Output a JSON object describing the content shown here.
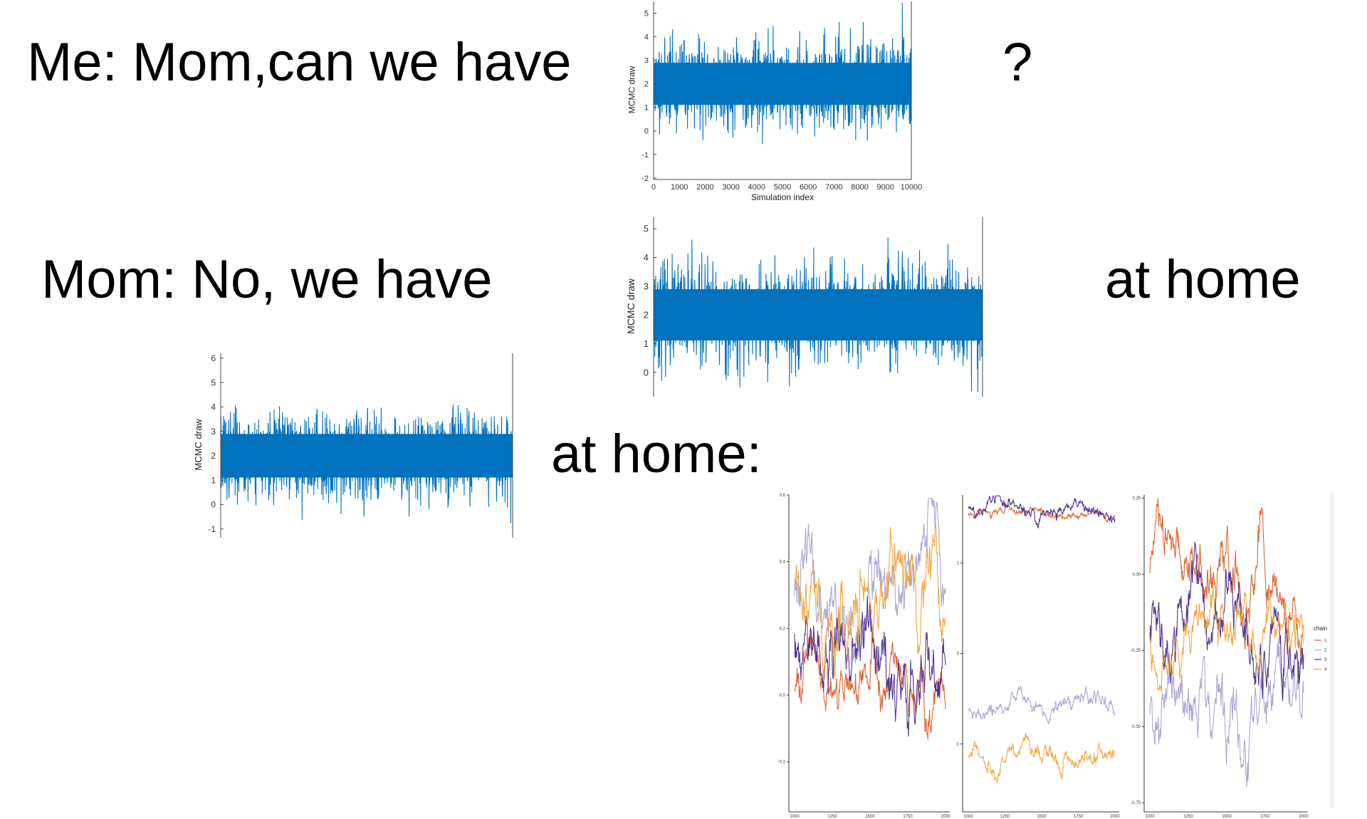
{
  "captions": {
    "line1": "Me: Mom,can we have",
    "question": "?",
    "line2": "Mom: No, we have",
    "at_home": "at home",
    "line3": "at home:"
  },
  "colors": {
    "trace_blue": "#0072BD",
    "chain1": "#D95F2B",
    "chain2": "#A8A2D2",
    "chain3": "#4B2C8A",
    "chain4": "#F0A33A"
  },
  "chart_data": [
    {
      "type": "line",
      "ylabel": "MCMC draw",
      "xlabel": "Simulation index",
      "xticks": [
        "0",
        "1000",
        "2000",
        "3000",
        "4000",
        "5000",
        "6000",
        "7000",
        "8000",
        "9000",
        "10000"
      ],
      "yticks": [
        "-2",
        "-1",
        "0",
        "1",
        "2",
        "3",
        "4",
        "5"
      ],
      "xlim": [
        0,
        10000
      ],
      "ylim": [
        -2,
        5.5
      ],
      "series": [
        {
          "mean": 2,
          "sd": 0.85,
          "n": 10000
        }
      ]
    },
    {
      "type": "line",
      "ylabel": "MCMC draw",
      "yticks": [
        "0",
        "1",
        "2",
        "3",
        "4",
        "5"
      ],
      "xlim": [
        0,
        10000
      ],
      "ylim": [
        -0.8,
        5.4
      ],
      "series": [
        {
          "mean": 2,
          "sd": 0.85,
          "n": 10000
        }
      ]
    },
    {
      "type": "line",
      "ylabel": "MCMC draw",
      "yticks": [
        "-1",
        "0",
        "1",
        "2",
        "3",
        "4",
        "5",
        "6"
      ],
      "xlim": [
        0,
        10000
      ],
      "ylim": [
        -1.3,
        6.2
      ],
      "series": [
        {
          "mean": 2,
          "sd": 0.85,
          "n": 10000
        }
      ]
    },
    {
      "type": "line",
      "yticks": [
        "-0.2",
        "0.0",
        "0.2",
        "0.4",
        "0.6"
      ],
      "xticks": [
        "1000",
        "1250",
        "1500",
        "1750",
        "2000"
      ],
      "xlim": [
        1000,
        2000
      ],
      "ylim": [
        -0.35,
        0.6
      ],
      "series": [
        {
          "chain": 1,
          "mean": 0.05,
          "sd": 0.08
        },
        {
          "chain": 2,
          "mean": 0.3,
          "sd": 0.12
        },
        {
          "chain": 3,
          "mean": 0.15,
          "sd": 0.12
        },
        {
          "chain": 4,
          "mean": 0.25,
          "sd": 0.12
        }
      ]
    },
    {
      "type": "line",
      "yticks": [
        "-1",
        "0",
        "1"
      ],
      "xticks": [
        "1000",
        "1250",
        "1500",
        "1750",
        "2000"
      ],
      "xlim": [
        1000,
        2000
      ],
      "ylim": [
        -1.75,
        1.75
      ],
      "series": [
        {
          "chain": 1,
          "mean": 1.55,
          "sd": 0.05
        },
        {
          "chain": 2,
          "mean": -0.6,
          "sd": 0.1
        },
        {
          "chain": 3,
          "mean": 1.6,
          "sd": 0.08
        },
        {
          "chain": 4,
          "mean": -1.2,
          "sd": 0.12
        }
      ]
    },
    {
      "type": "line",
      "yticks": [
        "-0.75",
        "-0.50",
        "-0.25",
        "0.00",
        "0.25"
      ],
      "xticks": [
        "1000",
        "1250",
        "1500",
        "1750",
        "2000"
      ],
      "xlim": [
        1000,
        2000
      ],
      "ylim": [
        -0.78,
        0.26
      ],
      "legend_title": "chain",
      "legend": [
        "1",
        "2",
        "3",
        "4"
      ],
      "series": [
        {
          "chain": 1,
          "mean": 0.0,
          "sd": 0.1
        },
        {
          "chain": 2,
          "mean": -0.45,
          "sd": 0.12
        },
        {
          "chain": 3,
          "mean": -0.2,
          "sd": 0.12
        },
        {
          "chain": 4,
          "mean": -0.25,
          "sd": 0.08
        }
      ]
    }
  ]
}
